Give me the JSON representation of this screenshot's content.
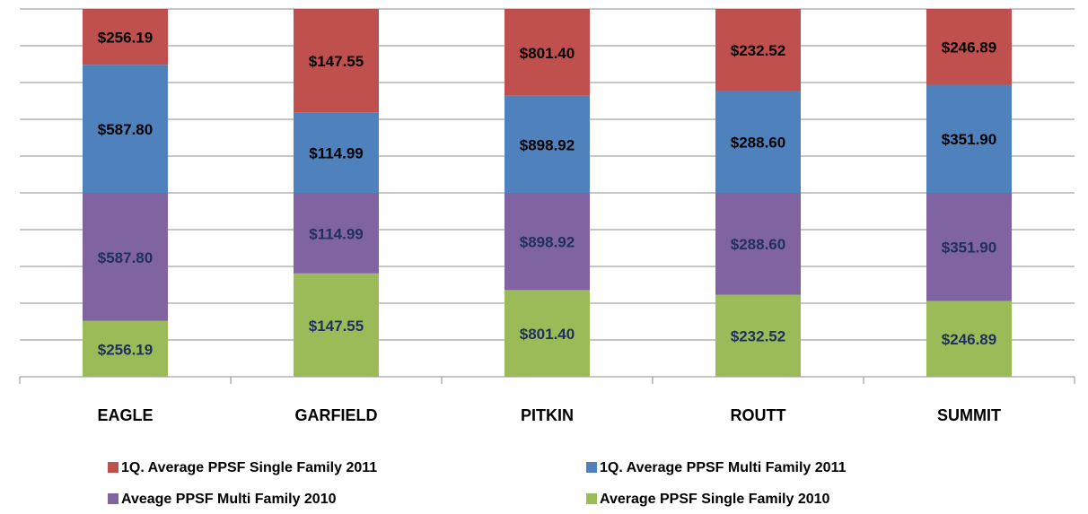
{
  "chart_data": {
    "type": "bar",
    "stack": "percent",
    "grid": true,
    "categories": [
      "EAGLE",
      "GARFIELD",
      "PITKIN",
      "ROUTT",
      "SUMMIT"
    ],
    "series": [
      {
        "name": "1Q. Average PPSF Single Family 2011",
        "color": "#c0504d",
        "label_color": "#000000",
        "values": [
          256.19,
          147.55,
          801.4,
          232.52,
          246.89
        ],
        "value_labels": [
          "$256.19",
          "$147.55",
          "$801.40",
          "$232.52",
          "$246.89"
        ]
      },
      {
        "name": "1Q. Average PPSF Multi Family 2011",
        "color": "#4f81bd",
        "label_color": "#000000",
        "values": [
          587.8,
          114.99,
          898.92,
          288.6,
          351.9
        ],
        "value_labels": [
          "$587.80",
          "$114.99",
          "$898.92",
          "$288.60",
          "$351.90"
        ]
      },
      {
        "name": "Aveage PPSF Multi Family 2010",
        "color": "#8064a2",
        "label_color": "#1f2f5e",
        "values": [
          587.8,
          114.99,
          898.92,
          288.6,
          351.9
        ],
        "value_labels": [
          "$587.80",
          "$114.99",
          "$898.92",
          "$288.60",
          "$351.90"
        ]
      },
      {
        "name": "Average PPSF Single Family 2010",
        "color": "#9bbb59",
        "label_color": "#1f2f5e",
        "values": [
          256.19,
          147.55,
          801.4,
          232.52,
          246.89
        ],
        "value_labels": [
          "$256.19",
          "$147.55",
          "$801.40",
          "$232.52",
          "$246.89"
        ]
      }
    ]
  }
}
